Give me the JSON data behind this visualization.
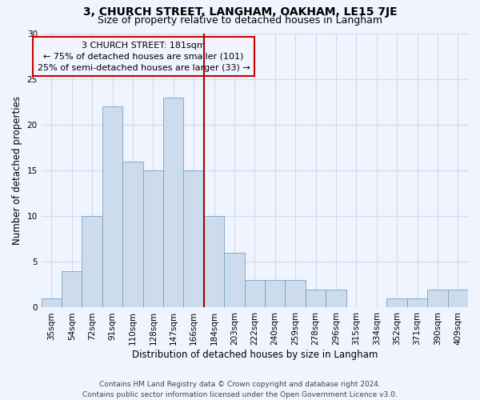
{
  "title": "3, CHURCH STREET, LANGHAM, OAKHAM, LE15 7JE",
  "subtitle": "Size of property relative to detached houses in Langham",
  "xlabel": "Distribution of detached houses by size in Langham",
  "ylabel": "Number of detached properties",
  "footer_line1": "Contains HM Land Registry data © Crown copyright and database right 2024.",
  "footer_line2": "Contains public sector information licensed under the Open Government Licence v3.0.",
  "categories": [
    "35sqm",
    "54sqm",
    "72sqm",
    "91sqm",
    "110sqm",
    "128sqm",
    "147sqm",
    "166sqm",
    "184sqm",
    "203sqm",
    "222sqm",
    "240sqm",
    "259sqm",
    "278sqm",
    "296sqm",
    "315sqm",
    "334sqm",
    "352sqm",
    "371sqm",
    "390sqm",
    "409sqm"
  ],
  "values": [
    1,
    4,
    10,
    22,
    16,
    15,
    23,
    15,
    10,
    6,
    3,
    3,
    3,
    2,
    2,
    0,
    0,
    1,
    1,
    2,
    2
  ],
  "bar_color": "#ccdcec",
  "bar_edge_color": "#7aA0c0",
  "grid_color": "#d0d8ea",
  "vline_color": "#aa0000",
  "annotation_line1": "3 CHURCH STREET: 181sqm",
  "annotation_line2": "← 75% of detached houses are smaller (101)",
  "annotation_line3": "25% of semi-detached houses are larger (33) →",
  "annotation_box_color": "#cc0000",
  "ylim": [
    0,
    30
  ],
  "yticks": [
    0,
    5,
    10,
    15,
    20,
    25,
    30
  ],
  "bg_color": "#f0f4ff",
  "title_fontsize": 10,
  "subtitle_fontsize": 9,
  "axis_label_fontsize": 8.5,
  "tick_fontsize": 7.5,
  "annotation_fontsize": 8,
  "footer_fontsize": 6.5
}
